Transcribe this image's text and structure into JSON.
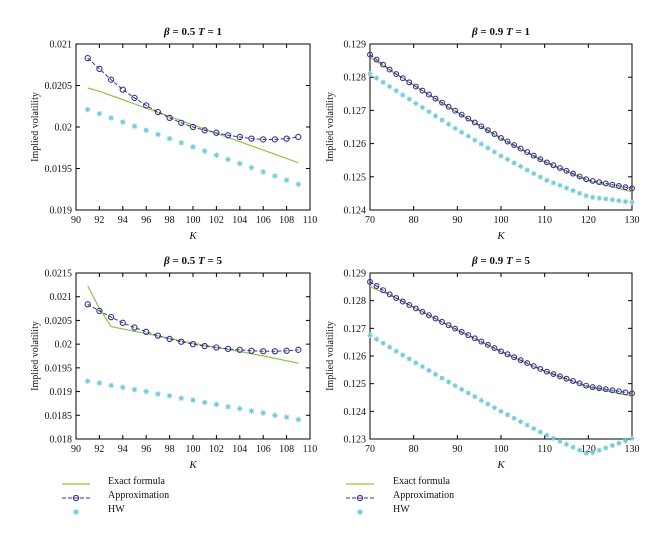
{
  "colors": {
    "exact": "#8dc63f",
    "approx": "#3a3394",
    "hw": "#6fc9d9",
    "axis": "#000000"
  },
  "legend": {
    "exact": "Exact formula",
    "approx": "Approximation",
    "hw": "HW"
  },
  "chart_data": [
    {
      "type": "line",
      "title": "β = 0.5 T = 1",
      "title_parts": {
        "beta": "β",
        "beta_value": "= 0.5",
        "t": "T",
        "t_value": "= 1"
      },
      "xlabel": "K",
      "ylabel": "Implied volatility",
      "xlim": [
        90,
        110
      ],
      "ylim": [
        0.019,
        0.021
      ],
      "xticks": [
        "90",
        "92",
        "94",
        "96",
        "98",
        "100",
        "102",
        "104",
        "106",
        "108",
        "110"
      ],
      "yticks": [
        "0.019",
        "0.0195",
        "0.02",
        "0.0205",
        "0.021"
      ],
      "series": [
        {
          "name": "Exact formula",
          "x": [
            91,
            92,
            109
          ],
          "y": [
            0.02047,
            0.02043,
            0.01957
          ]
        },
        {
          "name": "Approximation",
          "x": [
            91,
            92,
            93,
            94,
            95,
            96,
            97,
            98,
            99,
            100,
            101,
            102,
            103,
            104,
            105,
            106,
            107,
            108,
            109
          ],
          "y": [
            0.02083,
            0.0207,
            0.02057,
            0.02045,
            0.02035,
            0.02026,
            0.02018,
            0.02011,
            0.02005,
            0.02,
            0.01996,
            0.01993,
            0.0199,
            0.01988,
            0.01986,
            0.01985,
            0.01985,
            0.01986,
            0.01988
          ]
        },
        {
          "name": "HW",
          "x": [
            91,
            92,
            93,
            94,
            95,
            96,
            97,
            98,
            99,
            100,
            101,
            102,
            103,
            104,
            105,
            106,
            107,
            108,
            109
          ],
          "y": [
            0.02021,
            0.02016,
            0.02011,
            0.02006,
            0.02001,
            0.01996,
            0.01991,
            0.01986,
            0.01981,
            0.01976,
            0.01971,
            0.01966,
            0.01961,
            0.01956,
            0.01951,
            0.01946,
            0.01941,
            0.01936,
            0.01931
          ]
        }
      ]
    },
    {
      "type": "line",
      "title": "β = 0.9 T = 1",
      "title_parts": {
        "beta": "β",
        "beta_value": "= 0.9",
        "t": "T",
        "t_value": "= 1"
      },
      "xlabel": "K",
      "ylabel": "Implied volatility",
      "xlim": [
        70,
        130
      ],
      "ylim": [
        0.124,
        0.129
      ],
      "xticks": [
        "70",
        "80",
        "90",
        "100",
        "110",
        "120",
        "130"
      ],
      "yticks": [
        "0.124",
        "0.125",
        "0.126",
        "0.127",
        "0.128",
        "0.129"
      ],
      "series": [
        {
          "name": "Exact formula",
          "x": [
            70,
            75,
            80,
            90,
            100,
            110,
            120,
            130
          ],
          "y": [
            0.1286,
            0.12818,
            0.12776,
            0.12693,
            0.12615,
            0.12544,
            0.12488,
            0.12455
          ]
        },
        {
          "name": "Approximation",
          "x": [
            70,
            75,
            80,
            90,
            100,
            110,
            120,
            130
          ],
          "y": [
            0.12868,
            0.12818,
            0.12776,
            0.12695,
            0.12617,
            0.12546,
            0.1249,
            0.12465
          ]
        },
        {
          "name": "HW",
          "x": [
            70,
            75,
            80,
            90,
            100,
            110,
            120,
            130
          ],
          "y": [
            0.1281,
            0.12768,
            0.12725,
            0.12642,
            0.12563,
            0.12492,
            0.1244,
            0.12423
          ]
        }
      ]
    },
    {
      "type": "line",
      "title": "β = 0.5 T = 5",
      "title_parts": {
        "beta": "β",
        "beta_value": "= 0.5",
        "t": "T",
        "t_value": "= 5"
      },
      "xlabel": "K",
      "ylabel": "Implied volatility",
      "xlim": [
        90,
        110
      ],
      "ylim": [
        0.018,
        0.0215
      ],
      "xticks": [
        "90",
        "92",
        "94",
        "96",
        "98",
        "100",
        "102",
        "104",
        "106",
        "108",
        "110"
      ],
      "yticks": [
        "0.018",
        "0.0185",
        "0.019",
        "0.0195",
        "0.02",
        "0.0205",
        "0.021",
        "0.0215"
      ],
      "series": [
        {
          "name": "Exact formula",
          "x": [
            91,
            92,
            93,
            95,
            100,
            105,
            109
          ],
          "y": [
            0.02123,
            0.02075,
            0.02037,
            0.02027,
            0.02002,
            0.0198,
            0.0196
          ]
        },
        {
          "name": "Approximation",
          "x": [
            91,
            92,
            93,
            94,
            95,
            96,
            97,
            98,
            99,
            100,
            101,
            102,
            103,
            104,
            105,
            106,
            107,
            108,
            109
          ],
          "y": [
            0.02084,
            0.0207,
            0.02057,
            0.02045,
            0.02035,
            0.02026,
            0.02018,
            0.02011,
            0.02005,
            0.02,
            0.01996,
            0.01993,
            0.0199,
            0.01988,
            0.01986,
            0.01985,
            0.01985,
            0.01986,
            0.01988
          ]
        },
        {
          "name": "HW",
          "x": [
            91,
            92,
            93,
            94,
            95,
            96,
            97,
            98,
            99,
            100,
            101,
            102,
            103,
            104,
            105,
            106,
            107,
            108,
            109
          ],
          "y": [
            0.01922,
            0.01918,
            0.01913,
            0.01909,
            0.01904,
            0.019,
            0.01895,
            0.01891,
            0.01886,
            0.01882,
            0.01877,
            0.01873,
            0.01868,
            0.01864,
            0.01859,
            0.01855,
            0.0185,
            0.01846,
            0.01841
          ]
        }
      ]
    },
    {
      "type": "line",
      "title": "β = 0.9 T = 5",
      "title_parts": {
        "beta": "β",
        "beta_value": "= 0.9",
        "t": "T",
        "t_value": "= 5"
      },
      "xlabel": "K",
      "ylabel": "Implied volatility",
      "xlim": [
        70,
        130
      ],
      "ylim": [
        0.123,
        0.129
      ],
      "xticks": [
        "70",
        "80",
        "90",
        "100",
        "110",
        "120",
        "130"
      ],
      "yticks": [
        "0.123",
        "0.124",
        "0.125",
        "0.126",
        "0.127",
        "0.128",
        "0.129"
      ],
      "series": [
        {
          "name": "Exact formula",
          "x": [
            70,
            75,
            80,
            90,
            100,
            110,
            120,
            130
          ],
          "y": [
            0.1285,
            0.12818,
            0.12776,
            0.12693,
            0.12615,
            0.12544,
            0.12488,
            0.12455
          ]
        },
        {
          "name": "Approximation",
          "x": [
            70,
            75,
            80,
            90,
            100,
            110,
            120,
            130
          ],
          "y": [
            0.12868,
            0.12818,
            0.12776,
            0.12695,
            0.12617,
            0.12546,
            0.1249,
            0.12465
          ]
        },
        {
          "name": "HW",
          "x": [
            70,
            75,
            80,
            90,
            100,
            110,
            120,
            130
          ],
          "y": [
            0.12675,
            0.12627,
            0.1258,
            0.12488,
            0.124,
            0.12317,
            0.12245,
            0.12302
          ]
        }
      ]
    }
  ]
}
